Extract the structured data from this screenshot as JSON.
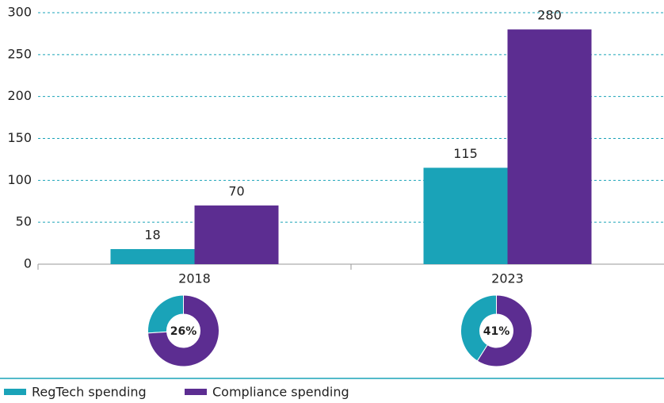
{
  "chart_data": {
    "type": "bar",
    "categories": [
      "2018",
      "2023"
    ],
    "series": [
      {
        "name": "RegTech spending",
        "color": "#1aa3b8",
        "values": [
          18,
          115
        ]
      },
      {
        "name": "Compliance spending",
        "color": "#5c2d91",
        "values": [
          70,
          280
        ]
      }
    ],
    "ylim": [
      0,
      300
    ],
    "yticks": [
      0,
      50,
      100,
      150,
      200,
      250,
      300
    ],
    "grid": true,
    "donuts": {
      "values": [
        26,
        41
      ],
      "value_labels": [
        "26%",
        "41%"
      ]
    }
  }
}
